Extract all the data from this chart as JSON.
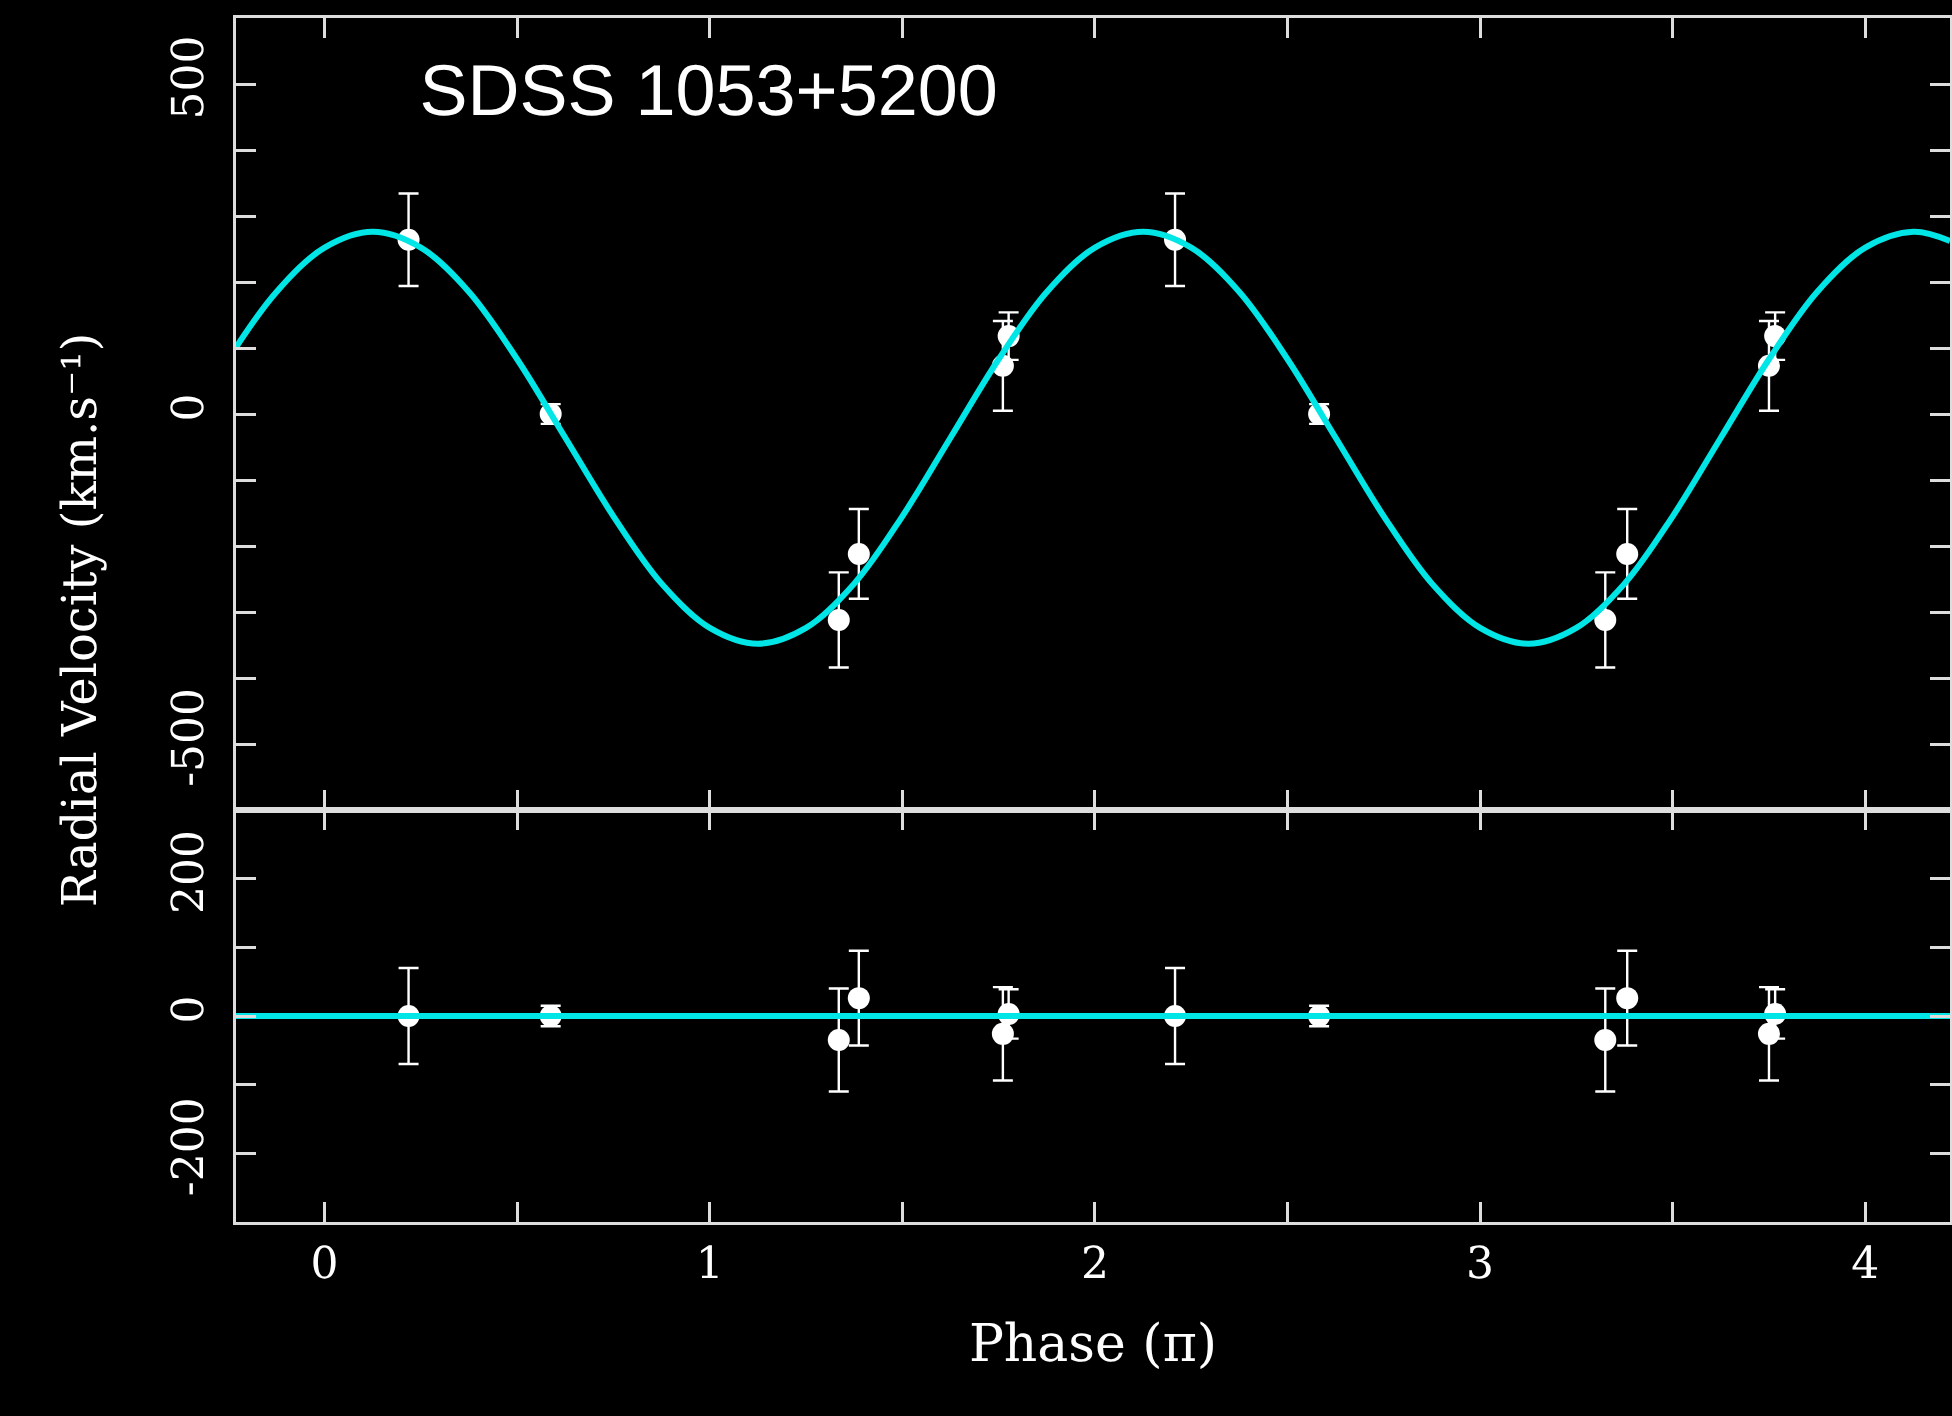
{
  "chart_data": [
    {
      "type": "scatter",
      "title": "SDSS 1053+5200",
      "ylabel": "Radial Velocity (km.s⁻¹)",
      "xlim": [
        -0.23,
        4.22
      ],
      "xticks": [
        0,
        {
          "value": 0.5,
          "label": null
        },
        1,
        {
          "value": 1.5,
          "label": null
        },
        2,
        {
          "value": 2.5,
          "label": null
        },
        3,
        {
          "value": 3.5,
          "label": null
        },
        4
      ],
      "ylim": [
        -600,
        600
      ],
      "yticks": [
        -500,
        {
          "value": -400,
          "label": null
        },
        {
          "value": -300,
          "label": null
        },
        {
          "value": -200,
          "label": null
        },
        {
          "value": -100,
          "label": null
        },
        0,
        {
          "value": 100,
          "label": null
        },
        {
          "value": 200,
          "label": null
        },
        {
          "value": 300,
          "label": null
        },
        {
          "value": 400,
          "label": null
        },
        500
      ],
      "tick_labels": "y",
      "series": [
        {
          "marker": "circle",
          "color": "#ffffff",
          "x": [
            0.218,
            0.587,
            1.335,
            1.387,
            1.761,
            1.776,
            2.208,
            2.582,
            3.325,
            3.382,
            3.75,
            3.766
          ],
          "values": [
            264,
            0,
            -312,
            -212,
            73,
            118,
            264,
            0,
            -312,
            -212,
            73,
            118
          ],
          "errors": [
            70,
            15,
            72,
            68,
            68,
            36,
            70,
            15,
            72,
            68,
            68,
            36
          ]
        },
        {
          "type": "line",
          "color": "#00e5e5",
          "x": [
            -0.23,
            -0.125,
            0,
            0.125,
            0.25,
            0.375,
            0.5,
            0.625,
            0.75,
            0.875,
            1,
            1.125,
            1.25,
            1.375,
            1.5,
            1.625,
            1.75,
            1.875,
            2,
            2.125,
            2.25,
            2.375,
            2.5,
            2.625,
            2.75,
            2.875,
            3,
            3.125,
            3.25,
            3.375,
            3.5,
            3.625,
            3.75,
            3.875,
            4,
            4.125,
            4.22
          ],
          "values": [
            101,
            185,
            252,
            276,
            252,
            185,
            83,
            -36,
            -155,
            -257,
            -324,
            -348,
            -324,
            -257,
            -155,
            -36,
            83,
            185,
            252,
            276,
            252,
            185,
            83,
            -36,
            -155,
            -257,
            -324,
            -348,
            -324,
            -257,
            -155,
            -36,
            83,
            185,
            252,
            276,
            262
          ]
        }
      ]
    },
    {
      "type": "scatter",
      "xlabel": "Phase (π)",
      "xlim": [
        -0.23,
        4.22
      ],
      "xticks": [
        0,
        {
          "value": 0.5,
          "label": null
        },
        1,
        {
          "value": 1.5,
          "label": null
        },
        2,
        {
          "value": 2.5,
          "label": null
        },
        3,
        {
          "value": 3.5,
          "label": null
        },
        4
      ],
      "ylim": [
        -300,
        300
      ],
      "yticks": [
        -200,
        {
          "value": -100,
          "label": null
        },
        0,
        {
          "value": 100,
          "label": null
        },
        200
      ],
      "series": [
        {
          "marker": "circle",
          "color": "#ffffff",
          "x": [
            0.218,
            0.587,
            1.335,
            1.387,
            1.761,
            1.776,
            2.208,
            2.582,
            3.325,
            3.382,
            3.75,
            3.766
          ],
          "values": [
            0,
            0,
            -35,
            26,
            -26,
            3,
            0,
            0,
            -35,
            26,
            -26,
            3
          ],
          "errors": [
            70,
            15,
            75,
            69,
            68,
            36,
            70,
            15,
            75,
            69,
            68,
            36
          ]
        },
        {
          "type": "line",
          "color": "#00e5e5",
          "x": [
            -0.23,
            4.22
          ],
          "values": [
            0,
            0
          ]
        }
      ]
    }
  ]
}
